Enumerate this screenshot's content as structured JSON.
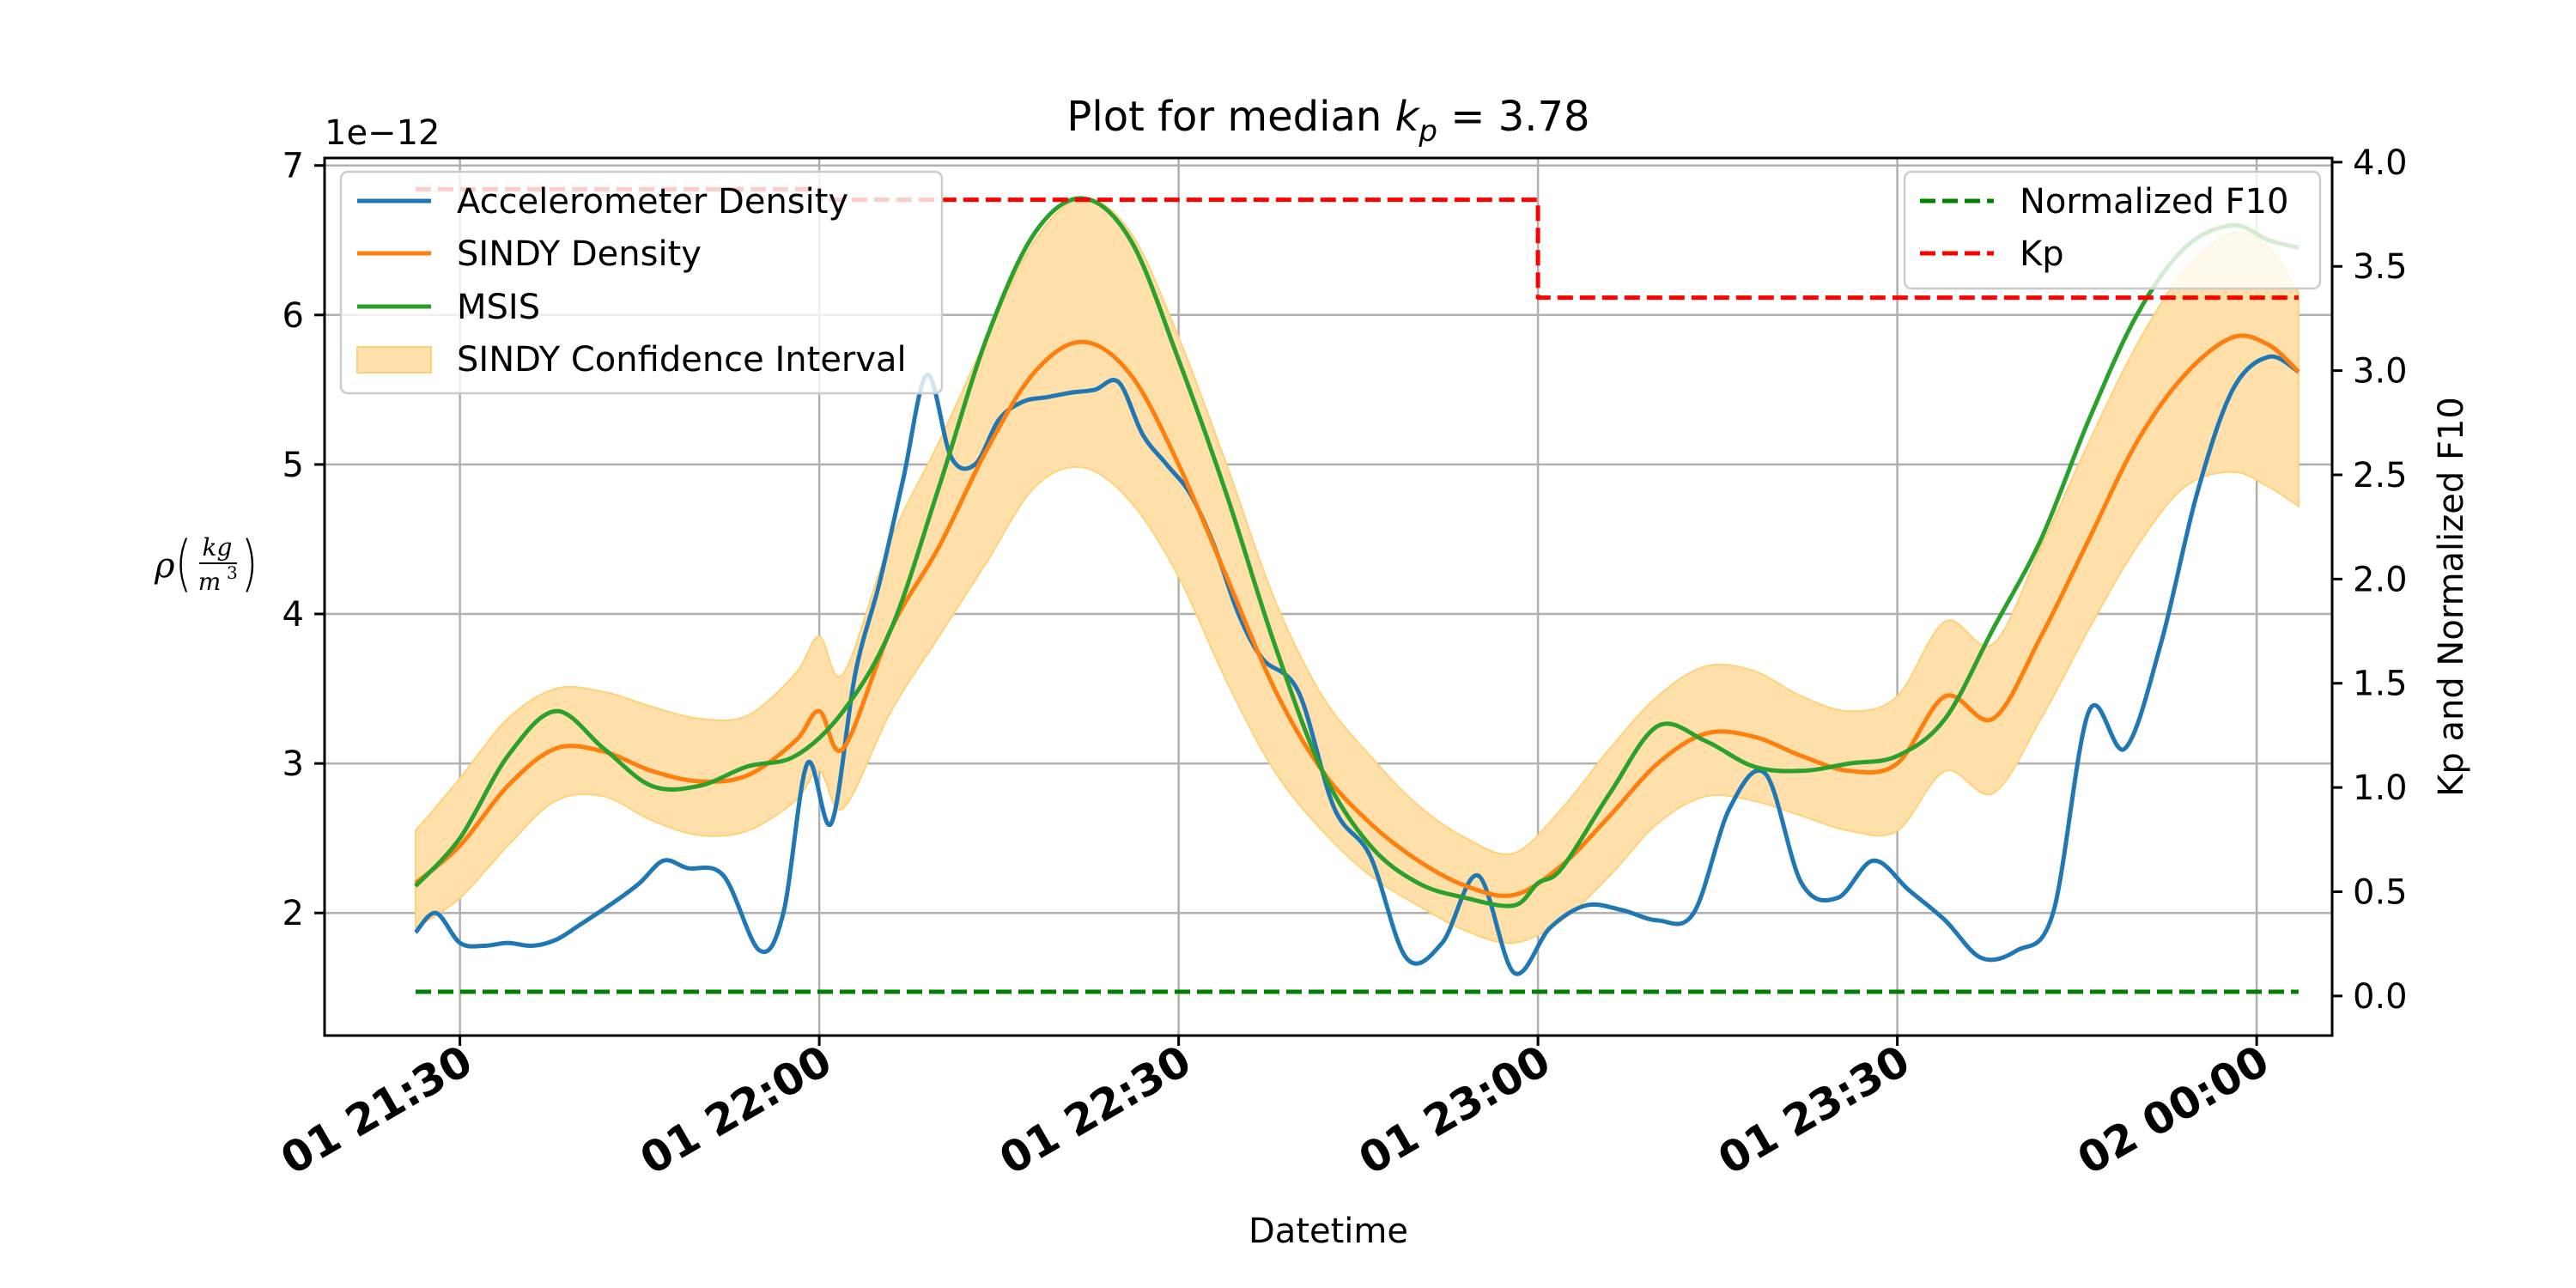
{
  "chart_data": {
    "type": "line",
    "title": "Plot for median k_p = 3.78",
    "title_parts": {
      "pre": "Plot for median ",
      "var": "k",
      "sub": "p",
      "post": " = 3.78"
    },
    "xlabel": "Datetime",
    "ylabel_parts": {
      "rho": "ρ",
      "num": "kg",
      "den": "m",
      "den_exp": "3"
    },
    "ylabel2": "Kp and Normalized F10",
    "y_offset_text": "1e−12",
    "x_tick_labels": [
      "01 21:30",
      "01 22:00",
      "01 22:30",
      "01 23:00",
      "01 23:30",
      "02 00:00"
    ],
    "x_tick_minutes": [
      0,
      30,
      60,
      90,
      120,
      150
    ],
    "x_unit": "minutes after 01 21:30",
    "xlim": [
      -11.3,
      156.3
    ],
    "y_ticks": [
      2,
      3,
      4,
      5,
      6,
      7
    ],
    "ylim": [
      1.18,
      7.05
    ],
    "y2_ticks": [
      0.0,
      0.5,
      1.0,
      1.5,
      2.0,
      2.5,
      3.0,
      3.5,
      4.0
    ],
    "y2_tick_labels": [
      "0.0",
      "0.5",
      "1.0",
      "1.5",
      "2.0",
      "2.5",
      "3.0",
      "3.5",
      "4.0"
    ],
    "y2lim": [
      -0.19,
      4.02
    ],
    "grid": true,
    "legend_left": [
      "Accelerometer Density",
      "SINDY Density",
      "MSIS",
      "SINDY Confidence Interval"
    ],
    "legend_right": [
      "Normalized F10",
      "Kp"
    ],
    "legend_left_placement": "top-left",
    "legend_right_placement": "top-right",
    "colors": {
      "accelerometer": "#1f77b4",
      "sindy": "#ff7f0e",
      "msis": "#2ca02c",
      "confidence": "#ffe0aa",
      "f10": "#008000",
      "kp": "#ff0000"
    },
    "series": [
      {
        "name": "Accelerometer Density",
        "axis": "left",
        "x": [
          -3.7,
          -2,
          0,
          2,
          4,
          6,
          8,
          10,
          13,
          15,
          17,
          19,
          22,
          25,
          27,
          29,
          31,
          33,
          35,
          37,
          39,
          41,
          43,
          45,
          47,
          49,
          51,
          53,
          55,
          57,
          59,
          61,
          63,
          65,
          67,
          70,
          73,
          76,
          79,
          82,
          85,
          88,
          91,
          94,
          97,
          100,
          103,
          106,
          109,
          112,
          115,
          118,
          121,
          124,
          127,
          130,
          133,
          136,
          139,
          142,
          145,
          148,
          151,
          153.5
        ],
        "y": [
          1.87,
          2.0,
          1.8,
          1.78,
          1.8,
          1.78,
          1.82,
          1.92,
          2.08,
          2.2,
          2.35,
          2.3,
          2.25,
          1.75,
          2.0,
          3.0,
          2.6,
          3.6,
          4.2,
          4.9,
          5.6,
          5.05,
          5.0,
          5.3,
          5.42,
          5.45,
          5.48,
          5.5,
          5.55,
          5.2,
          5.0,
          4.8,
          4.45,
          4.0,
          3.7,
          3.48,
          2.7,
          2.38,
          1.7,
          1.8,
          2.25,
          1.6,
          1.9,
          2.05,
          2.02,
          1.95,
          2.0,
          2.7,
          2.93,
          2.2,
          2.1,
          2.35,
          2.15,
          1.95,
          1.7,
          1.75,
          2.0,
          3.35,
          3.1,
          3.8,
          4.8,
          5.5,
          5.72,
          5.62
        ]
      },
      {
        "name": "SINDY Density",
        "axis": "left",
        "x": [
          -3.7,
          0,
          4,
          8,
          12,
          16,
          20,
          24,
          28,
          30,
          32,
          36,
          40,
          44,
          48,
          52,
          56,
          60,
          64,
          68,
          72,
          76,
          80,
          84,
          88,
          92,
          96,
          100,
          104,
          108,
          112,
          116,
          120,
          124,
          128,
          132,
          136,
          140,
          144,
          148,
          151,
          153.5
        ],
        "y": [
          2.2,
          2.45,
          2.85,
          3.1,
          3.08,
          2.95,
          2.88,
          2.92,
          3.15,
          3.35,
          3.1,
          3.9,
          4.45,
          5.1,
          5.62,
          5.82,
          5.6,
          5.0,
          4.25,
          3.5,
          2.95,
          2.6,
          2.35,
          2.18,
          2.12,
          2.32,
          2.65,
          3.0,
          3.2,
          3.18,
          3.05,
          2.95,
          3.0,
          3.45,
          3.3,
          3.85,
          4.5,
          5.15,
          5.6,
          5.85,
          5.8,
          5.62
        ]
      },
      {
        "name": "MSIS",
        "axis": "left",
        "x": [
          -3.7,
          0,
          4,
          8,
          12,
          16,
          20,
          24,
          28,
          32,
          36,
          40,
          44,
          48,
          52,
          56,
          60,
          64,
          68,
          72,
          76,
          80,
          84,
          88,
          90,
          92,
          96,
          100,
          104,
          108,
          112,
          116,
          120,
          124,
          128,
          132,
          136,
          140,
          144,
          148,
          151,
          153.5
        ],
        "y": [
          2.18,
          2.5,
          3.05,
          3.35,
          3.1,
          2.85,
          2.85,
          2.98,
          3.05,
          3.35,
          3.9,
          4.85,
          5.85,
          6.55,
          6.78,
          6.5,
          5.7,
          4.8,
          3.8,
          2.95,
          2.45,
          2.2,
          2.1,
          2.05,
          2.2,
          2.3,
          2.8,
          3.25,
          3.15,
          2.98,
          2.95,
          3.0,
          3.05,
          3.3,
          3.9,
          4.5,
          5.3,
          6.0,
          6.45,
          6.6,
          6.5,
          6.45
        ]
      },
      {
        "name": "SINDY Confidence Interval",
        "axis": "left",
        "type": "area",
        "x": [
          -3.7,
          0,
          4,
          8,
          12,
          16,
          20,
          24,
          28,
          30,
          32,
          36,
          40,
          44,
          48,
          52,
          56,
          60,
          64,
          68,
          72,
          76,
          80,
          84,
          88,
          92,
          96,
          100,
          104,
          108,
          112,
          116,
          120,
          124,
          128,
          132,
          136,
          140,
          144,
          148,
          151,
          153.5
        ],
        "upper": [
          2.55,
          2.9,
          3.3,
          3.5,
          3.48,
          3.38,
          3.3,
          3.32,
          3.6,
          3.85,
          3.6,
          4.5,
          5.15,
          5.85,
          6.5,
          6.78,
          6.55,
          5.85,
          5.0,
          4.1,
          3.45,
          3.05,
          2.72,
          2.5,
          2.4,
          2.7,
          3.1,
          3.45,
          3.65,
          3.62,
          3.45,
          3.35,
          3.45,
          3.95,
          3.8,
          4.45,
          5.15,
          5.8,
          6.3,
          6.55,
          6.45,
          6.15
        ],
        "lower": [
          1.9,
          2.1,
          2.45,
          2.75,
          2.78,
          2.62,
          2.52,
          2.55,
          2.75,
          2.95,
          2.7,
          3.35,
          3.85,
          4.35,
          4.85,
          4.98,
          4.75,
          4.25,
          3.55,
          2.95,
          2.55,
          2.25,
          2.05,
          1.88,
          1.8,
          1.95,
          2.25,
          2.6,
          2.78,
          2.75,
          2.65,
          2.55,
          2.55,
          2.95,
          2.8,
          3.3,
          3.9,
          4.45,
          4.85,
          4.95,
          4.85,
          4.72
        ]
      },
      {
        "name": "Normalized F10",
        "axis": "right",
        "style": "dashed",
        "x": [
          -3.7,
          153.5
        ],
        "y": [
          0.02,
          0.02
        ]
      },
      {
        "name": "Kp",
        "axis": "right",
        "style": "dashed",
        "x": [
          -3.7,
          30,
          30,
          90,
          90,
          153.5
        ],
        "y": [
          3.87,
          3.87,
          3.82,
          3.82,
          3.35,
          3.35
        ]
      }
    ]
  }
}
